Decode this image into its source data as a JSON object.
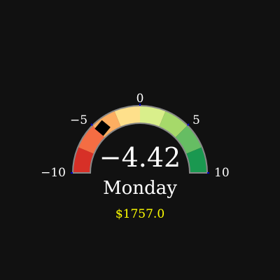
{
  "chart_data": {
    "type": "gauge",
    "range": [
      -10,
      10
    ],
    "value": -4.42,
    "value_text": "−4.42",
    "label": "Monday",
    "subtitle": "$1757.0",
    "ticks": [
      {
        "value": -10,
        "text": "−10"
      },
      {
        "value": -5,
        "text": "−5"
      },
      {
        "value": 0,
        "text": "0"
      },
      {
        "value": 5,
        "text": "5"
      },
      {
        "value": 10,
        "text": "10"
      }
    ],
    "bands": [
      {
        "from": -10,
        "to": -7.5,
        "color": "#d73027"
      },
      {
        "from": -7.5,
        "to": -5,
        "color": "#f46d43"
      },
      {
        "from": -5,
        "to": -2.5,
        "color": "#fdae61"
      },
      {
        "from": -2.5,
        "to": 0,
        "color": "#fee08b"
      },
      {
        "from": 0,
        "to": 2.5,
        "color": "#d9ef8b"
      },
      {
        "from": 2.5,
        "to": 5,
        "color": "#a6d96a"
      },
      {
        "from": 5,
        "to": 7.5,
        "color": "#66bd63"
      },
      {
        "from": 7.5,
        "to": 10,
        "color": "#1a9850"
      }
    ],
    "colors": {
      "outline": "#888888",
      "marker": "#000000",
      "tick_mark": "#0000cc",
      "value_text": "#ffffff",
      "subtitle": "#ffff00"
    }
  }
}
